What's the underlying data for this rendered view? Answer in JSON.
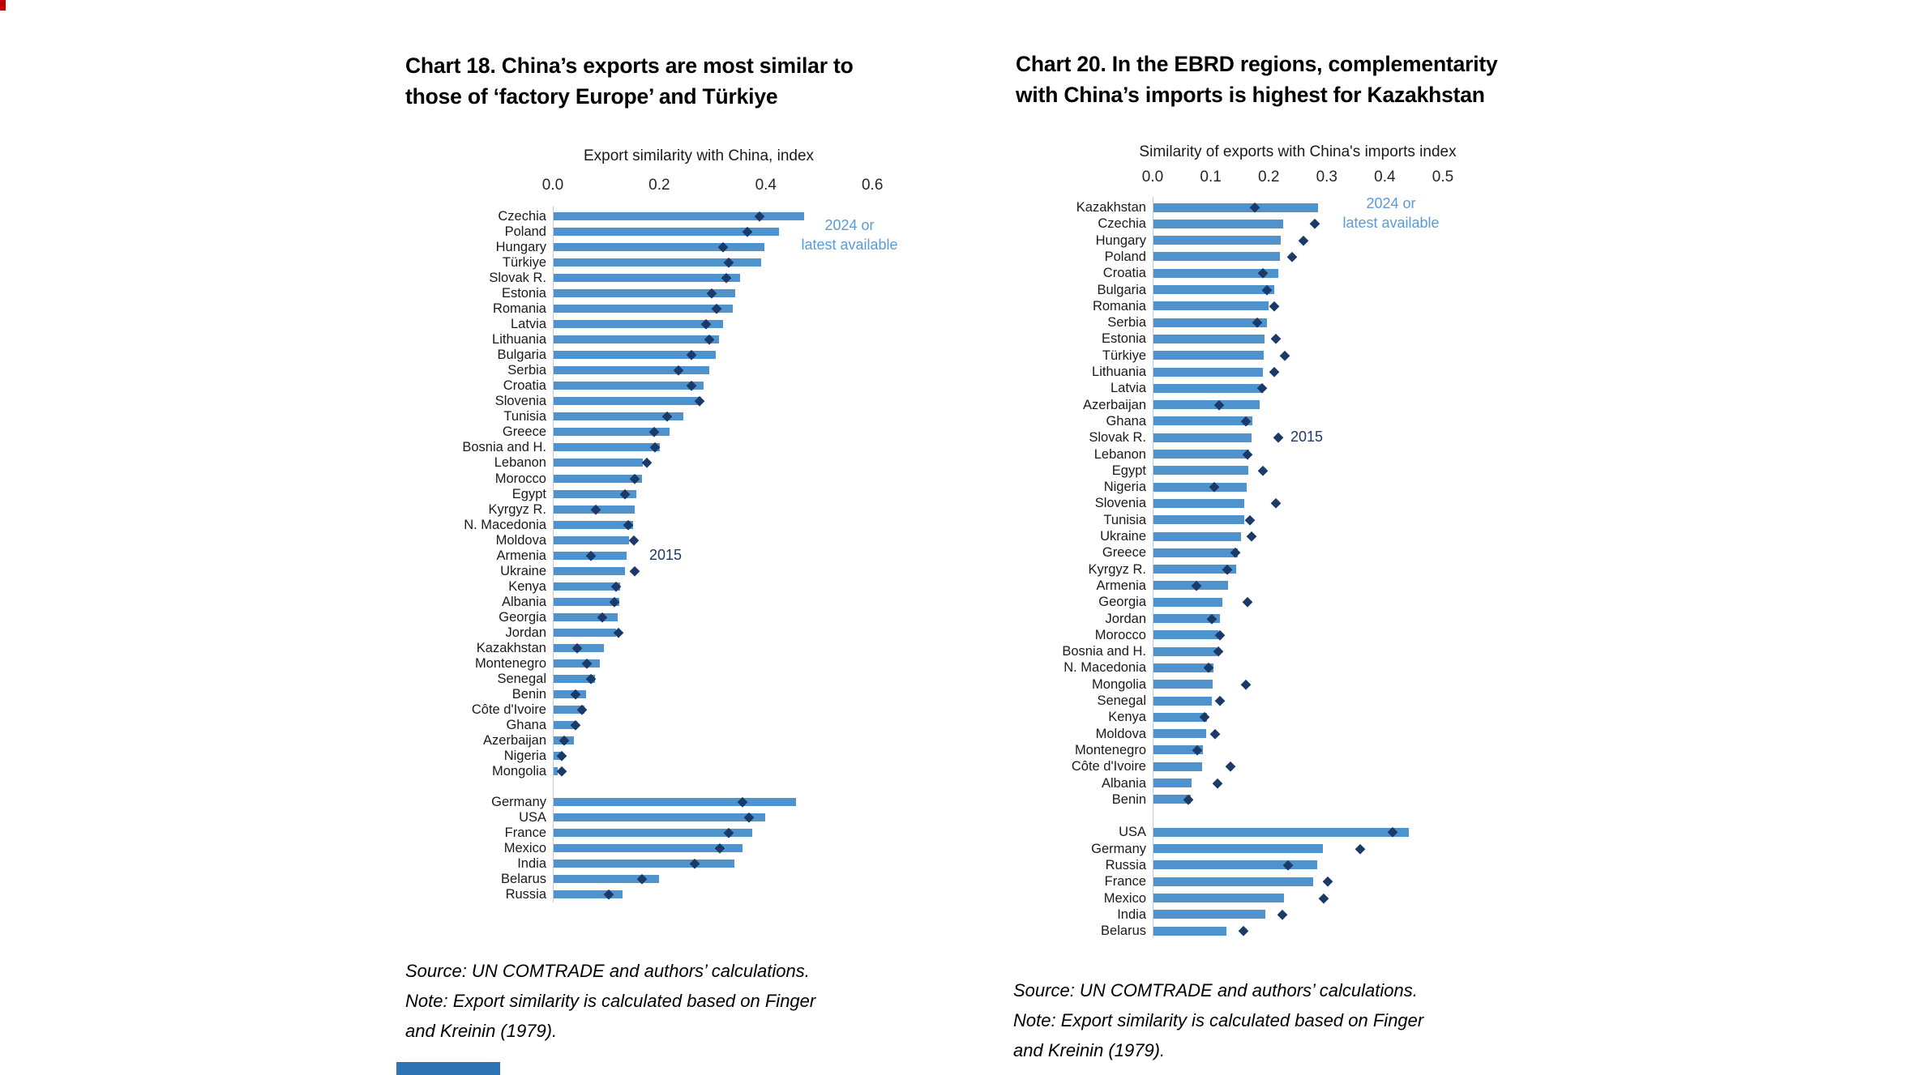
{
  "colors": {
    "bar": "#4f93ce",
    "marker": "#1b3a68",
    "legend_series_text": "#5b9bd5",
    "legend_marker_text": "#1f3864",
    "axis_line": "#c8c8c8",
    "edge_red": "#c00000",
    "edge_blue": "#2e74b5"
  },
  "chart_data": [
    {
      "type": "bar",
      "title": "Chart 18. China’s exports are most similar to those of ‘factory Europe’ and Türkiye",
      "title_lines": [
        "Chart 18. China’s exports are most similar to",
        "those of ‘factory Europe’ and Türkiye"
      ],
      "axis_title": "Export similarity with China, index",
      "xlabel": "Export similarity with China, index",
      "ylabel": "",
      "xlim": [
        0.0,
        0.6
      ],
      "tick_labels": [
        "0.0",
        "0.2",
        "0.4",
        "0.6"
      ],
      "tick_values": [
        0.0,
        0.2,
        0.4,
        0.6
      ],
      "legend": {
        "bar_series_lines": [
          "2024 or",
          "latest available"
        ],
        "bar_series": "2024 or latest available",
        "marker_series": "2015"
      },
      "groups": [
        {
          "rows": [
            {
              "label": "Czechia",
              "latest": 0.471,
              "y2015": 0.388
            },
            {
              "label": "Poland",
              "latest": 0.423,
              "y2015": 0.366
            },
            {
              "label": "Hungary",
              "latest": 0.395,
              "y2015": 0.32
            },
            {
              "label": "Türkiye",
              "latest": 0.39,
              "y2015": 0.33
            },
            {
              "label": "Slovak R.",
              "latest": 0.35,
              "y2015": 0.325
            },
            {
              "label": "Estonia",
              "latest": 0.341,
              "y2015": 0.299
            },
            {
              "label": "Romania",
              "latest": 0.337,
              "y2015": 0.307
            },
            {
              "label": "Latvia",
              "latest": 0.318,
              "y2015": 0.287
            },
            {
              "label": "Lithuania",
              "latest": 0.311,
              "y2015": 0.293
            },
            {
              "label": "Bulgaria",
              "latest": 0.304,
              "y2015": 0.261
            },
            {
              "label": "Serbia",
              "latest": 0.292,
              "y2015": 0.236
            },
            {
              "label": "Croatia",
              "latest": 0.282,
              "y2015": 0.26
            },
            {
              "label": "Slovenia",
              "latest": 0.277,
              "y2015": 0.276
            },
            {
              "label": "Tunisia",
              "latest": 0.244,
              "y2015": 0.214
            },
            {
              "label": "Greece",
              "latest": 0.218,
              "y2015": 0.19
            },
            {
              "label": "Bosnia and H.",
              "latest": 0.199,
              "y2015": 0.192
            },
            {
              "label": "Lebanon",
              "latest": 0.168,
              "y2015": 0.176
            },
            {
              "label": "Morocco",
              "latest": 0.166,
              "y2015": 0.154
            },
            {
              "label": "Egypt",
              "latest": 0.155,
              "y2015": 0.136
            },
            {
              "label": "Kyrgyz R.",
              "latest": 0.152,
              "y2015": 0.08
            },
            {
              "label": "N. Macedonia",
              "latest": 0.149,
              "y2015": 0.142
            },
            {
              "label": "Moldova",
              "latest": 0.142,
              "y2015": 0.152
            },
            {
              "label": "Armenia",
              "latest": 0.137,
              "y2015": 0.072
            },
            {
              "label": "Ukraine",
              "latest": 0.134,
              "y2015": 0.154
            },
            {
              "label": "Kenya",
              "latest": 0.125,
              "y2015": 0.119
            },
            {
              "label": "Albania",
              "latest": 0.123,
              "y2015": 0.116
            },
            {
              "label": "Georgia",
              "latest": 0.12,
              "y2015": 0.093
            },
            {
              "label": "Jordan",
              "latest": 0.117,
              "y2015": 0.123
            },
            {
              "label": "Kazakhstan",
              "latest": 0.094,
              "y2015": 0.045
            },
            {
              "label": "Montenegro",
              "latest": 0.086,
              "y2015": 0.064
            },
            {
              "label": "Senegal",
              "latest": 0.077,
              "y2015": 0.072
            },
            {
              "label": "Benin",
              "latest": 0.061,
              "y2015": 0.043
            },
            {
              "label": "Côte d'Ivoire",
              "latest": 0.058,
              "y2015": 0.055
            },
            {
              "label": "Ghana",
              "latest": 0.04,
              "y2015": 0.042
            },
            {
              "label": "Azerbaijan",
              "latest": 0.038,
              "y2015": 0.021
            },
            {
              "label": "Nigeria",
              "latest": 0.013,
              "y2015": 0.017
            },
            {
              "label": "Mongolia",
              "latest": 0.007,
              "y2015": 0.017
            }
          ]
        },
        {
          "rows": [
            {
              "label": "Germany",
              "latest": 0.455,
              "y2015": 0.356
            },
            {
              "label": "USA",
              "latest": 0.397,
              "y2015": 0.368
            },
            {
              "label": "France",
              "latest": 0.373,
              "y2015": 0.331
            },
            {
              "label": "Mexico",
              "latest": 0.355,
              "y2015": 0.314
            },
            {
              "label": "India",
              "latest": 0.34,
              "y2015": 0.267
            },
            {
              "label": "Belarus",
              "latest": 0.198,
              "y2015": 0.168
            },
            {
              "label": "Russia",
              "latest": 0.13,
              "y2015": 0.105
            }
          ]
        }
      ],
      "note_lines": [
        "Source: UN COMTRADE and authors’ calculations.",
        "Note: Export similarity is calculated based on Finger",
        "and Kreinin (1979)."
      ]
    },
    {
      "type": "bar",
      "title": "Chart 20. In the EBRD regions, complementarity with China’s imports is highest for Kazakhstan",
      "title_lines": [
        "Chart 20. In the EBRD regions, complementarity",
        "with China’s imports is highest for Kazakhstan"
      ],
      "axis_title": "Similarity of exports with China's imports index",
      "xlabel": "Similarity of exports with China's imports index",
      "ylabel": "",
      "xlim": [
        0.0,
        0.5
      ],
      "tick_labels": [
        "0.0",
        "0.1",
        "0.2",
        "0.3",
        "0.4",
        "0.5"
      ],
      "tick_values": [
        0.0,
        0.1,
        0.2,
        0.3,
        0.4,
        0.5
      ],
      "legend": {
        "bar_series_lines": [
          "2024 or",
          "latest available"
        ],
        "bar_series": "2024 or latest available",
        "marker_series": "2015"
      },
      "groups": [
        {
          "rows": [
            {
              "label": "Kazakhstan",
              "latest": 0.283,
              "y2015": 0.176
            },
            {
              "label": "Czechia",
              "latest": 0.223,
              "y2015": 0.28
            },
            {
              "label": "Hungary",
              "latest": 0.219,
              "y2015": 0.26
            },
            {
              "label": "Poland",
              "latest": 0.218,
              "y2015": 0.24
            },
            {
              "label": "Croatia",
              "latest": 0.215,
              "y2015": 0.19
            },
            {
              "label": "Bulgaria",
              "latest": 0.208,
              "y2015": 0.197
            },
            {
              "label": "Romania",
              "latest": 0.199,
              "y2015": 0.209
            },
            {
              "label": "Serbia",
              "latest": 0.196,
              "y2015": 0.18
            },
            {
              "label": "Estonia",
              "latest": 0.191,
              "y2015": 0.212
            },
            {
              "label": "Türkiye",
              "latest": 0.19,
              "y2015": 0.227
            },
            {
              "label": "Lithuania",
              "latest": 0.189,
              "y2015": 0.209
            },
            {
              "label": "Latvia",
              "latest": 0.188,
              "y2015": 0.188
            },
            {
              "label": "Azerbaijan",
              "latest": 0.183,
              "y2015": 0.114
            },
            {
              "label": "Ghana",
              "latest": 0.17,
              "y2015": 0.16
            },
            {
              "label": "Slovak R.",
              "latest": 0.169,
              "y2015": 0.216
            },
            {
              "label": "Lebanon",
              "latest": 0.165,
              "y2015": 0.163
            },
            {
              "label": "Egypt",
              "latest": 0.163,
              "y2015": 0.19
            },
            {
              "label": "Nigeria",
              "latest": 0.16,
              "y2015": 0.106
            },
            {
              "label": "Slovenia",
              "latest": 0.157,
              "y2015": 0.212
            },
            {
              "label": "Tunisia",
              "latest": 0.156,
              "y2015": 0.168
            },
            {
              "label": "Ukraine",
              "latest": 0.151,
              "y2015": 0.171
            },
            {
              "label": "Greece",
              "latest": 0.145,
              "y2015": 0.142
            },
            {
              "label": "Kyrgyz R.",
              "latest": 0.142,
              "y2015": 0.129
            },
            {
              "label": "Armenia",
              "latest": 0.129,
              "y2015": 0.076
            },
            {
              "label": "Georgia",
              "latest": 0.119,
              "y2015": 0.163
            },
            {
              "label": "Jordan",
              "latest": 0.114,
              "y2015": 0.102
            },
            {
              "label": "Morocco",
              "latest": 0.112,
              "y2015": 0.116
            },
            {
              "label": "Bosnia and H.",
              "latest": 0.109,
              "y2015": 0.113
            },
            {
              "label": "N. Macedonia",
              "latest": 0.103,
              "y2015": 0.096
            },
            {
              "label": "Mongolia",
              "latest": 0.102,
              "y2015": 0.16
            },
            {
              "label": "Senegal",
              "latest": 0.101,
              "y2015": 0.116
            },
            {
              "label": "Kenya",
              "latest": 0.092,
              "y2015": 0.09
            },
            {
              "label": "Moldova",
              "latest": 0.091,
              "y2015": 0.107
            },
            {
              "label": "Montenegro",
              "latest": 0.085,
              "y2015": 0.077
            },
            {
              "label": "Côte d'Ivoire",
              "latest": 0.084,
              "y2015": 0.134
            },
            {
              "label": "Albania",
              "latest": 0.066,
              "y2015": 0.112
            },
            {
              "label": "Benin",
              "latest": 0.064,
              "y2015": 0.062
            }
          ]
        },
        {
          "rows": [
            {
              "label": "USA",
              "latest": 0.44,
              "y2015": 0.414
            },
            {
              "label": "Germany",
              "latest": 0.292,
              "y2015": 0.358
            },
            {
              "label": "Russia",
              "latest": 0.282,
              "y2015": 0.233
            },
            {
              "label": "France",
              "latest": 0.275,
              "y2015": 0.301
            },
            {
              "label": "Mexico",
              "latest": 0.225,
              "y2015": 0.295
            },
            {
              "label": "India",
              "latest": 0.193,
              "y2015": 0.224
            },
            {
              "label": "Belarus",
              "latest": 0.126,
              "y2015": 0.157
            }
          ]
        }
      ],
      "note_lines": [
        "Source: UN COMTRADE and authors’ calculations.",
        "Note: Export similarity is calculated based on Finger",
        "and Kreinin (1979)."
      ]
    }
  ]
}
